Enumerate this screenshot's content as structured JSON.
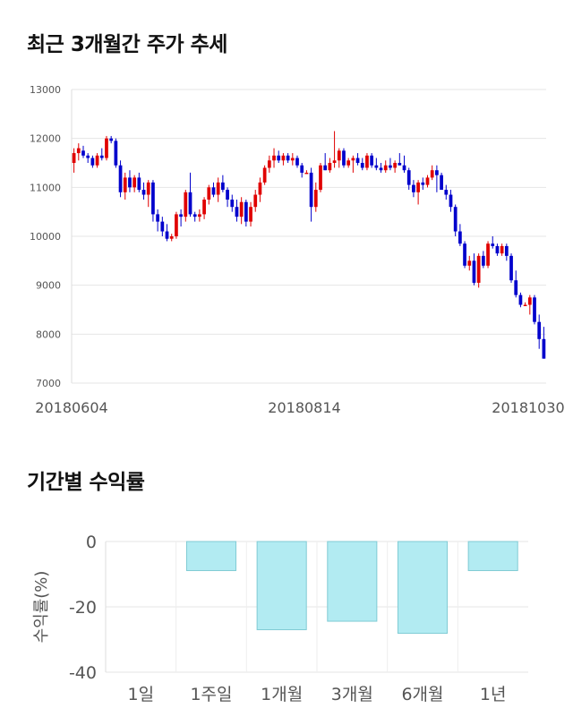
{
  "titles": {
    "price_trend": "최근 3개월간 주가 추세",
    "period_returns": "기간별 수익률"
  },
  "colors": {
    "up": "#e00000",
    "down": "#0000cc",
    "return_bar_fill": "#b2ebf2",
    "return_bar_stroke": "#80cbd4",
    "grid": "#e6e6e6"
  },
  "chart_data": [
    {
      "type": "candlestick",
      "title": "",
      "xlabel": "",
      "ylabel": "",
      "ylim": [
        7000,
        13000
      ],
      "yticks": [
        "13000",
        "12000",
        "11000",
        "10000",
        "9000",
        "8000",
        "7000"
      ],
      "xtick_labels": [
        "20180604",
        "20180814",
        "20181030"
      ],
      "grid": true,
      "ohlc": [
        [
          11500,
          11800,
          11300,
          11700
        ],
        [
          11700,
          11900,
          11550,
          11800
        ],
        [
          11750,
          11850,
          11600,
          11650
        ],
        [
          11650,
          11700,
          11500,
          11600
        ],
        [
          11600,
          11650,
          11400,
          11450
        ],
        [
          11450,
          11700,
          11400,
          11650
        ],
        [
          11650,
          11800,
          11550,
          11600
        ],
        [
          11600,
          12050,
          11550,
          12000
        ],
        [
          12000,
          12050,
          11900,
          11950
        ],
        [
          11950,
          12000,
          11400,
          11450
        ],
        [
          11450,
          11550,
          10800,
          10900
        ],
        [
          10900,
          11300,
          10750,
          11200
        ],
        [
          11200,
          11350,
          10900,
          11000
        ],
        [
          11000,
          11250,
          10900,
          11200
        ],
        [
          11200,
          11300,
          10900,
          10950
        ],
        [
          10950,
          11100,
          10750,
          10850
        ],
        [
          10850,
          11150,
          10600,
          11100
        ],
        [
          11100,
          11150,
          10300,
          10450
        ],
        [
          10450,
          10550,
          10100,
          10300
        ],
        [
          10300,
          10400,
          10000,
          10100
        ],
        [
          10100,
          10250,
          9900,
          9950
        ],
        [
          9950,
          10050,
          9900,
          10000
        ],
        [
          10000,
          10500,
          9950,
          10450
        ],
        [
          10450,
          10550,
          10200,
          10400
        ],
        [
          10400,
          10950,
          10300,
          10900
        ],
        [
          10900,
          11300,
          10400,
          10450
        ],
        [
          10450,
          10500,
          10300,
          10400
        ],
        [
          10400,
          10550,
          10300,
          10450
        ],
        [
          10450,
          10800,
          10350,
          10750
        ],
        [
          10750,
          11050,
          10650,
          11000
        ],
        [
          11000,
          11100,
          10800,
          10850
        ],
        [
          10850,
          11200,
          10700,
          11100
        ],
        [
          11100,
          11250,
          10900,
          10950
        ],
        [
          10950,
          11000,
          10600,
          10750
        ],
        [
          10750,
          10850,
          10500,
          10600
        ],
        [
          10600,
          10750,
          10300,
          10400
        ],
        [
          10400,
          10800,
          10250,
          10700
        ],
        [
          10700,
          10750,
          10200,
          10300
        ],
        [
          10300,
          10700,
          10200,
          10600
        ],
        [
          10600,
          10950,
          10500,
          10850
        ],
        [
          10850,
          11200,
          10700,
          11100
        ],
        [
          11100,
          11450,
          11050,
          11400
        ],
        [
          11400,
          11650,
          11300,
          11550
        ],
        [
          11550,
          11800,
          11400,
          11650
        ],
        [
          11650,
          11750,
          11500,
          11550
        ],
        [
          11550,
          11700,
          11450,
          11650
        ],
        [
          11650,
          11700,
          11500,
          11550
        ],
        [
          11550,
          11700,
          11450,
          11600
        ],
        [
          11600,
          11650,
          11400,
          11450
        ],
        [
          11450,
          11500,
          11200,
          11300
        ],
        [
          11300,
          11350,
          11300,
          11300
        ],
        [
          11300,
          11400,
          10300,
          10600
        ],
        [
          10600,
          11100,
          10500,
          10950
        ],
        [
          10950,
          11500,
          10900,
          11450
        ],
        [
          11450,
          11700,
          11350,
          11350
        ],
        [
          11350,
          11600,
          11300,
          11500
        ],
        [
          11500,
          12150,
          11400,
          11550
        ],
        [
          11550,
          11800,
          11400,
          11750
        ],
        [
          11750,
          11800,
          11400,
          11450
        ],
        [
          11450,
          11600,
          11400,
          11550
        ],
        [
          11550,
          11650,
          11300,
          11600
        ],
        [
          11600,
          11700,
          11450,
          11500
        ],
        [
          11500,
          11600,
          11350,
          11400
        ],
        [
          11400,
          11700,
          11350,
          11650
        ],
        [
          11650,
          11700,
          11400,
          11450
        ],
        [
          11450,
          11600,
          11350,
          11400
        ],
        [
          11400,
          11500,
          11300,
          11350
        ],
        [
          11350,
          11550,
          11300,
          11450
        ],
        [
          11450,
          11600,
          11350,
          11400
        ],
        [
          11400,
          11550,
          11300,
          11500
        ],
        [
          11500,
          11700,
          11450,
          11450
        ],
        [
          11450,
          11650,
          11300,
          11350
        ],
        [
          11350,
          11400,
          10950,
          11050
        ],
        [
          11050,
          11150,
          10800,
          10900
        ],
        [
          10900,
          11150,
          10650,
          11100
        ],
        [
          11100,
          11200,
          10950,
          11050
        ],
        [
          11050,
          11250,
          11000,
          11200
        ],
        [
          11200,
          11450,
          11150,
          11350
        ],
        [
          11350,
          11450,
          10900,
          11250
        ],
        [
          11250,
          11300,
          11000,
          10950
        ],
        [
          10950,
          11050,
          10750,
          10850
        ],
        [
          10850,
          10950,
          10500,
          10600
        ],
        [
          10600,
          10650,
          10000,
          10100
        ],
        [
          10100,
          10250,
          9800,
          9850
        ],
        [
          9850,
          9900,
          9350,
          9400
        ],
        [
          9400,
          9600,
          9300,
          9500
        ],
        [
          9500,
          9650,
          9000,
          9050
        ],
        [
          9050,
          9650,
          8950,
          9600
        ],
        [
          9600,
          9700,
          9350,
          9400
        ],
        [
          9400,
          9900,
          9350,
          9850
        ],
        [
          9850,
          10000,
          9750,
          9800
        ],
        [
          9800,
          9850,
          9600,
          9650
        ],
        [
          9650,
          9850,
          9600,
          9800
        ],
        [
          9800,
          9850,
          9500,
          9600
        ],
        [
          9600,
          9650,
          9050,
          9100
        ],
        [
          9100,
          9300,
          8750,
          8800
        ],
        [
          8800,
          8850,
          8550,
          8600
        ],
        [
          8600,
          8650,
          8600,
          8600
        ],
        [
          8600,
          8800,
          8400,
          8750
        ],
        [
          8750,
          8800,
          8200,
          8250
        ],
        [
          8250,
          8400,
          7700,
          7900
        ],
        [
          7900,
          8150,
          7500,
          7500
        ]
      ]
    },
    {
      "type": "bar",
      "title": "",
      "xlabel": "",
      "ylabel": "수익률(%)",
      "ylim": [
        -40,
        0
      ],
      "yticks": [
        "0",
        "-20",
        "-40"
      ],
      "categories": [
        "1일",
        "1주일",
        "1개월",
        "3개월",
        "6개월",
        "1년"
      ],
      "values": [
        0,
        -8.9,
        -27.0,
        -24.4,
        -28.1,
        -8.9
      ],
      "grid": true
    }
  ]
}
